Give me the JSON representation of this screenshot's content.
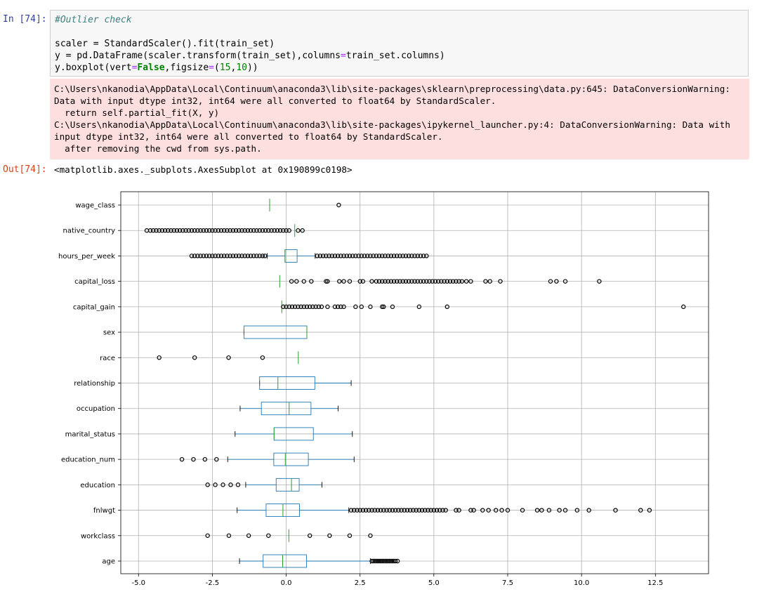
{
  "cell": {
    "in_prompt": "In [74]:",
    "out_prompt": "Out[74]:",
    "code": {
      "comment": "#Outlier check",
      "line2_pre": "scaler = StandardScaler().fit(train_set)",
      "line3_pre": "y = pd.DataFrame(scaler.transform(train_set),columns",
      "line3_eq": "=",
      "line3_post": "train_set.columns)",
      "line4_a": "y.boxplot(vert",
      "line4_eq1": "=",
      "line4_false": "False",
      "line4_b": ",figsize",
      "line4_eq2": "=",
      "line4_c": "(",
      "line4_n1": "15",
      "line4_d": ",",
      "line4_n2": "10",
      "line4_e": "))"
    },
    "stderr_lines": [
      "C:\\Users\\nkanodia\\AppData\\Local\\Continuum\\anaconda3\\lib\\site-packages\\sklearn\\preprocessing\\data.py:645: DataConversionWarning:",
      "Data with input dtype int32, int64 were all converted to float64 by StandardScaler.",
      "  return self.partial_fit(X, y)",
      "C:\\Users\\nkanodia\\AppData\\Local\\Continuum\\anaconda3\\lib\\site-packages\\ipykernel_launcher.py:4: DataConversionWarning: Data with",
      "input dtype int32, int64 were all converted to float64 by StandardScaler.",
      "  after removing the cwd from sys.path."
    ],
    "output_text": "<matplotlib.axes._subplots.AxesSubplot at 0x190899c0198>"
  },
  "colors": {
    "box": "#1f77b4",
    "median": "#2ca02c",
    "grid": "#b0b0b0",
    "stderr_bg": "#fddfdf"
  },
  "chart_data": {
    "type": "boxplot",
    "orientation": "horizontal",
    "xlim": [
      -5.6,
      14.3
    ],
    "xticks": [
      -5.0,
      -2.5,
      0.0,
      2.5,
      5.0,
      7.5,
      10.0,
      12.5
    ],
    "xtick_labels": [
      "-5.0",
      "-2.5",
      "0.0",
      "2.5",
      "5.0",
      "7.5",
      "10.0",
      "12.5"
    ],
    "grid": true,
    "categories": [
      "wage_class",
      "native_country",
      "hours_per_week",
      "capital_loss",
      "capital_gain",
      "sex",
      "race",
      "relationship",
      "occupation",
      "marital_status",
      "education_num",
      "education",
      "fnlwgt",
      "workclass",
      "age"
    ],
    "series": [
      {
        "label": "wage_class",
        "whislo": -0.56,
        "q1": -0.56,
        "med": -0.56,
        "q3": -0.56,
        "whishi": -0.56,
        "fliers": [
          1.78
        ]
      },
      {
        "label": "native_country",
        "whislo": 0.29,
        "q1": 0.29,
        "med": 0.29,
        "q3": 0.29,
        "whishi": 0.29,
        "fliers": [
          -4.72,
          -4.6,
          -4.5,
          -4.4,
          -4.3,
          -4.2,
          -4.1,
          -4.0,
          -3.9,
          -3.8,
          -3.7,
          -3.6,
          -3.5,
          -3.4,
          -3.3,
          -3.2,
          -3.1,
          -3.0,
          -2.9,
          -2.8,
          -2.7,
          -2.6,
          -2.5,
          -2.4,
          -2.3,
          -2.2,
          -2.1,
          -2.0,
          -1.9,
          -1.8,
          -1.7,
          -1.6,
          -1.5,
          -1.4,
          -1.3,
          -1.2,
          -1.1,
          -1.0,
          -0.9,
          -0.8,
          -0.7,
          -0.6,
          -0.5,
          -0.4,
          -0.3,
          -0.2,
          -0.1,
          0.0,
          0.1,
          0.4,
          0.55
        ]
      },
      {
        "label": "hours_per_week",
        "whislo": -0.64,
        "q1": -0.04,
        "med": -0.04,
        "q3": 0.37,
        "whishi": 0.98,
        "fliers": [
          -3.2,
          -3.1,
          -3.0,
          -2.9,
          -2.8,
          -2.7,
          -2.6,
          -2.5,
          -2.4,
          -2.3,
          -2.2,
          -2.1,
          -2.0,
          -1.9,
          -1.8,
          -1.7,
          -1.6,
          -1.5,
          -1.4,
          -1.3,
          -1.2,
          -1.1,
          -1.0,
          -0.9,
          -0.8,
          -0.72,
          1.05,
          1.15,
          1.25,
          1.35,
          1.45,
          1.55,
          1.65,
          1.75,
          1.85,
          1.95,
          2.05,
          2.15,
          2.25,
          2.35,
          2.45,
          2.55,
          2.65,
          2.75,
          2.85,
          2.95,
          3.05,
          3.15,
          3.25,
          3.35,
          3.45,
          3.55,
          3.65,
          3.75,
          3.85,
          3.95,
          4.05,
          4.15,
          4.25,
          4.35,
          4.45,
          4.55,
          4.65,
          4.75
        ]
      },
      {
        "label": "capital_loss",
        "whislo": -0.22,
        "q1": -0.22,
        "med": -0.22,
        "q3": -0.22,
        "whishi": -0.22,
        "fliers": [
          0.18,
          0.35,
          0.6,
          0.85,
          1.35,
          1.4,
          1.8,
          1.95,
          2.15,
          2.5,
          2.6,
          2.9,
          3.05,
          3.15,
          3.25,
          3.35,
          3.45,
          3.55,
          3.65,
          3.75,
          3.85,
          3.95,
          4.05,
          4.15,
          4.25,
          4.35,
          4.45,
          4.55,
          4.65,
          4.75,
          4.85,
          4.95,
          5.05,
          5.15,
          5.25,
          5.35,
          5.45,
          5.55,
          5.65,
          5.75,
          5.85,
          5.95,
          6.1,
          6.25,
          6.75,
          6.9,
          7.25,
          8.95,
          9.15,
          9.45,
          10.6
        ]
      },
      {
        "label": "capital_gain",
        "whislo": -0.15,
        "q1": -0.15,
        "med": -0.15,
        "q3": -0.15,
        "whishi": -0.15,
        "fliers": [
          -0.1,
          0.0,
          0.1,
          0.2,
          0.3,
          0.4,
          0.5,
          0.6,
          0.7,
          0.8,
          0.9,
          1.0,
          1.1,
          1.2,
          1.4,
          1.65,
          1.75,
          1.85,
          1.95,
          2.35,
          2.55,
          2.85,
          3.25,
          3.3,
          3.6,
          4.5,
          5.45,
          13.45
        ]
      },
      {
        "label": "sex",
        "whislo": -1.43,
        "q1": -1.43,
        "med": 0.7,
        "q3": 0.7,
        "whishi": 0.7,
        "fliers": []
      },
      {
        "label": "race",
        "whislo": 0.41,
        "q1": 0.41,
        "med": 0.41,
        "q3": 0.41,
        "whishi": 0.41,
        "fliers": [
          -4.3,
          -3.1,
          -1.95,
          -0.8
        ]
      },
      {
        "label": "relationship",
        "whislo": -0.9,
        "q1": -0.9,
        "med": -0.28,
        "q3": 0.97,
        "whishi": 2.2,
        "fliers": []
      },
      {
        "label": "occupation",
        "whislo": -1.56,
        "q1": -0.84,
        "med": 0.1,
        "q3": 0.84,
        "whishi": 1.76,
        "fliers": []
      },
      {
        "label": "marital_status",
        "whislo": -1.73,
        "q1": -0.41,
        "med": -0.41,
        "q3": 0.92,
        "whishi": 2.24,
        "fliers": []
      },
      {
        "label": "education_num",
        "whislo": -1.98,
        "q1": -0.42,
        "med": -0.03,
        "q3": 0.75,
        "whishi": 2.3,
        "fliers": [
          -3.53,
          -3.14,
          -2.75,
          -2.36
        ]
      },
      {
        "label": "education",
        "whislo": -1.37,
        "q1": -0.34,
        "med": 0.18,
        "q3": 0.44,
        "whishi": 1.21,
        "fliers": [
          -2.66,
          -2.4,
          -2.14,
          -1.88,
          -1.63
        ]
      },
      {
        "label": "fnlwgt",
        "whislo": -1.66,
        "q1": -0.68,
        "med": -0.11,
        "q3": 0.45,
        "whishi": 2.12,
        "fliers": [
          2.2,
          2.3,
          2.4,
          2.5,
          2.6,
          2.7,
          2.8,
          2.9,
          3.0,
          3.1,
          3.2,
          3.3,
          3.4,
          3.5,
          3.6,
          3.7,
          3.8,
          3.9,
          4.0,
          4.1,
          4.2,
          4.3,
          4.4,
          4.5,
          4.6,
          4.7,
          4.8,
          4.9,
          5.0,
          5.1,
          5.2,
          5.3,
          5.4,
          5.75,
          5.85,
          6.25,
          6.35,
          6.65,
          6.85,
          7.1,
          7.3,
          7.5,
          8.0,
          8.5,
          8.65,
          8.9,
          9.25,
          9.45,
          9.85,
          10.25,
          11.15,
          12.0,
          12.3
        ]
      },
      {
        "label": "workclass",
        "whislo": 0.09,
        "q1": 0.09,
        "med": 0.09,
        "q3": 0.09,
        "whishi": 0.09,
        "fliers": [
          -2.66,
          -1.94,
          -1.27,
          -0.6,
          0.8,
          1.47,
          2.15,
          2.85
        ]
      },
      {
        "label": "age",
        "whislo": -1.58,
        "q1": -0.78,
        "med": -0.12,
        "q3": 0.69,
        "whishi": 2.85,
        "fliers": [
          2.9,
          2.95,
          3.0,
          3.05,
          3.1,
          3.15,
          3.2,
          3.25,
          3.3,
          3.35,
          3.4,
          3.45,
          3.5,
          3.55,
          3.6,
          3.65,
          3.7,
          3.77
        ]
      }
    ]
  }
}
